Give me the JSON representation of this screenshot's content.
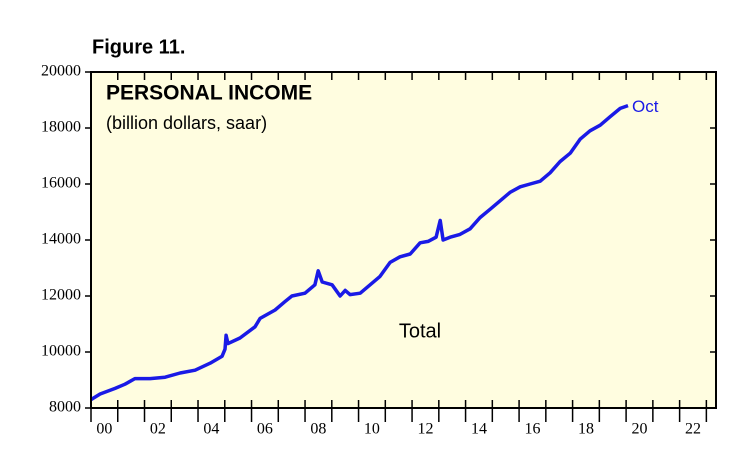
{
  "chart_data": {
    "type": "line",
    "figure_label": "Figure 11.",
    "title": "PERSONAL INCOME",
    "subtitle": "(billion dollars, saar)",
    "annotations": [
      "Oct",
      "Total"
    ],
    "xlim": [
      2000,
      2023.36
    ],
    "ylim": [
      8000,
      20000
    ],
    "yticks": [
      8000,
      10000,
      12000,
      14000,
      16000,
      18000,
      20000
    ],
    "xticks": [
      {
        "value": 2000,
        "label": "00"
      },
      {
        "value": 2001,
        "label": ""
      },
      {
        "value": 2002,
        "label": "02"
      },
      {
        "value": 2003,
        "label": ""
      },
      {
        "value": 2004,
        "label": "04"
      },
      {
        "value": 2005,
        "label": ""
      },
      {
        "value": 2006,
        "label": "06"
      },
      {
        "value": 2007,
        "label": ""
      },
      {
        "value": 2008,
        "label": "08"
      },
      {
        "value": 2009,
        "label": ""
      },
      {
        "value": 2010,
        "label": "10"
      },
      {
        "value": 2011,
        "label": ""
      },
      {
        "value": 2012,
        "label": "12"
      },
      {
        "value": 2013,
        "label": ""
      },
      {
        "value": 2014,
        "label": "14"
      },
      {
        "value": 2015,
        "label": ""
      },
      {
        "value": 2016,
        "label": "16"
      },
      {
        "value": 2017,
        "label": ""
      },
      {
        "value": 2018,
        "label": "18"
      },
      {
        "value": 2019,
        "label": ""
      },
      {
        "value": 2020,
        "label": "20"
      },
      {
        "value": 2021,
        "label": ""
      },
      {
        "value": 2022,
        "label": "22"
      },
      {
        "value": 2023,
        "label": ""
      }
    ],
    "background": "#fffde0",
    "series": [
      {
        "name": "Total",
        "color": "#1a1ae6",
        "x": [
          2000.0,
          2000.34,
          2000.9,
          2001.27,
          2001.64,
          2002.21,
          2002.77,
          2003.33,
          2003.89,
          2004.45,
          2004.9,
          2005.01,
          2005.05,
          2005.12,
          2005.57,
          2006.13,
          2006.32,
          2006.88,
          2007.25,
          2007.51,
          2008.0,
          2008.37,
          2008.49,
          2008.64,
          2009.01,
          2009.31,
          2009.5,
          2009.68,
          2010.06,
          2010.43,
          2010.8,
          2011.18,
          2011.55,
          2011.93,
          2012.3,
          2012.6,
          2012.9,
          2013.05,
          2013.16,
          2013.42,
          2013.79,
          2014.17,
          2014.54,
          2014.92,
          2015.29,
          2015.66,
          2016.04,
          2016.41,
          2016.79,
          2017.16,
          2017.53,
          2017.91,
          2018.28,
          2018.65,
          2019.03,
          2019.4,
          2019.78,
          2020.07
        ],
        "values": [
          8300,
          8500,
          8700,
          8850,
          9050,
          9050,
          9100,
          9250,
          9350,
          9600,
          9850,
          10100,
          10600,
          10300,
          10500,
          10900,
          11200,
          11500,
          11800,
          12000,
          12100,
          12400,
          12900,
          12500,
          12400,
          12000,
          12200,
          12050,
          12100,
          12400,
          12700,
          13200,
          13400,
          13500,
          13900,
          13950,
          14100,
          14700,
          14000,
          14100,
          14200,
          14400,
          14800,
          15100,
          15400,
          15700,
          15900,
          16000,
          16100,
          16400,
          16800,
          17100,
          17600,
          17900,
          18100,
          18400,
          18700,
          18800
        ]
      }
    ]
  }
}
